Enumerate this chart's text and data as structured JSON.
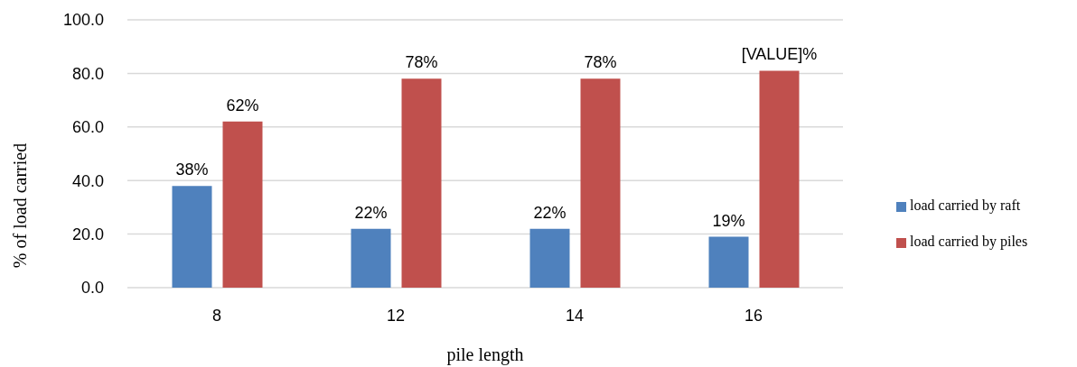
{
  "chart_data": {
    "type": "bar",
    "xlabel": "pile length",
    "ylabel": "% of load carried",
    "categories": [
      "8",
      "12",
      "14",
      "16"
    ],
    "series": [
      {
        "name": "load carried by raft",
        "color": "#4f81bd",
        "values": [
          38,
          22,
          22,
          19
        ],
        "value_labels": [
          "38%",
          "22%",
          "22%",
          "19%"
        ]
      },
      {
        "name": "load carried by piles",
        "color": "#c0504d",
        "values": [
          62,
          78,
          78,
          81
        ],
        "value_labels": [
          "62%",
          "78%",
          "78%",
          "[VALUE]%"
        ]
      }
    ],
    "ylim": [
      0,
      100
    ],
    "yticks": [
      {
        "value": 0,
        "label": "0.0"
      },
      {
        "value": 20,
        "label": "20.0"
      },
      {
        "value": 40,
        "label": "40.0"
      },
      {
        "value": 60,
        "label": "60.0"
      },
      {
        "value": 80,
        "label": "80.0"
      },
      {
        "value": 100,
        "label": "100.0"
      }
    ],
    "grid": "y",
    "legend": "right"
  }
}
